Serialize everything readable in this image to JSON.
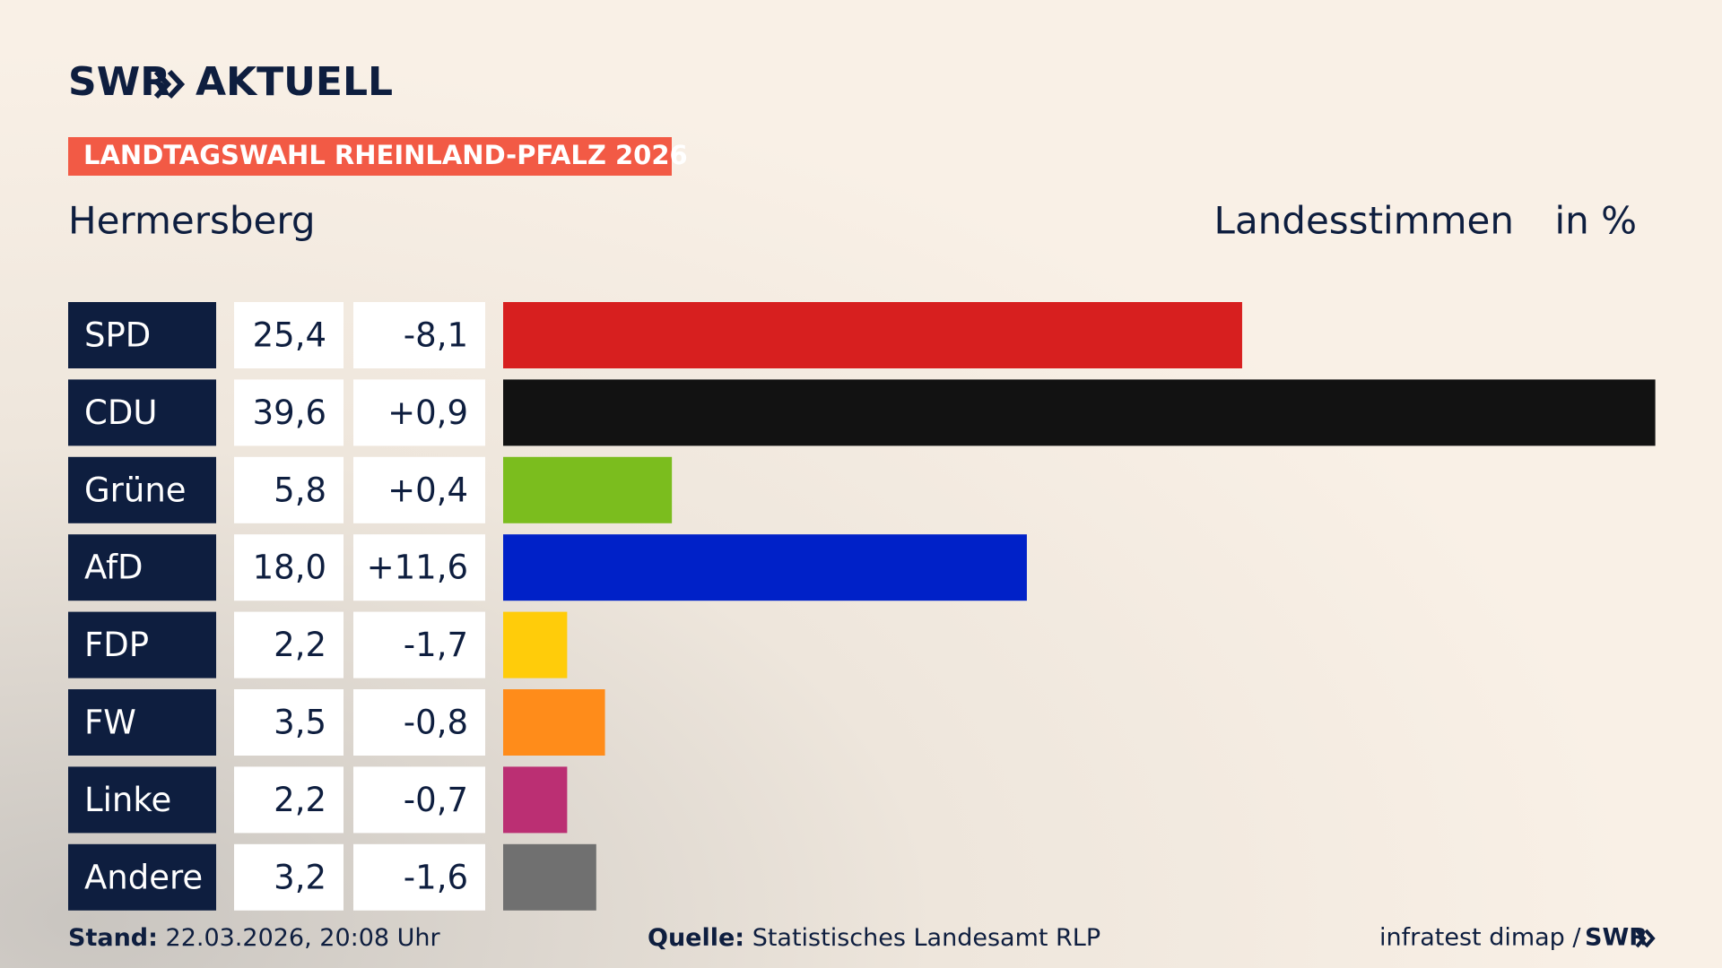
{
  "header": {
    "logo_left": "SWR",
    "logo_right": "AKTUELL",
    "banner": "LANDTAGSWAHL RHEINLAND-PFALZ 2026"
  },
  "chart_data": {
    "type": "bar",
    "title": "Hermersberg",
    "subtitle": "Landesstimmen",
    "unit": "in %",
    "categories": [
      "SPD",
      "CDU",
      "Grüne",
      "AfD",
      "FDP",
      "FW",
      "Linke",
      "Andere"
    ],
    "values": [
      25.4,
      39.6,
      5.8,
      18.0,
      2.2,
      3.5,
      2.2,
      3.2
    ],
    "value_labels": [
      "25,4",
      "39,6",
      "5,8",
      "18,0",
      "2,2",
      "3,5",
      "2,2",
      "3,2"
    ],
    "changes": [
      -8.1,
      0.9,
      0.4,
      11.6,
      -1.7,
      -0.8,
      -0.7,
      -1.6
    ],
    "change_labels": [
      "-8,1",
      "+0,9",
      "+0,4",
      "+11,6",
      "-1,7",
      "-0,8",
      "-0,7",
      "-1,6"
    ],
    "colors": [
      "#d71f1f",
      "#121212",
      "#7bbd1e",
      "#0021c8",
      "#ffcc0a",
      "#ff8c1a",
      "#bb2f73",
      "#707070"
    ]
  },
  "footer": {
    "stand_label": "Stand:",
    "stand": "22.03.2026, 20:08 Uhr",
    "source_label": "Quelle:",
    "source": "Statistisches Landesamt RLP",
    "credit": "infratest dimap /",
    "credit_logo": "SWR"
  }
}
